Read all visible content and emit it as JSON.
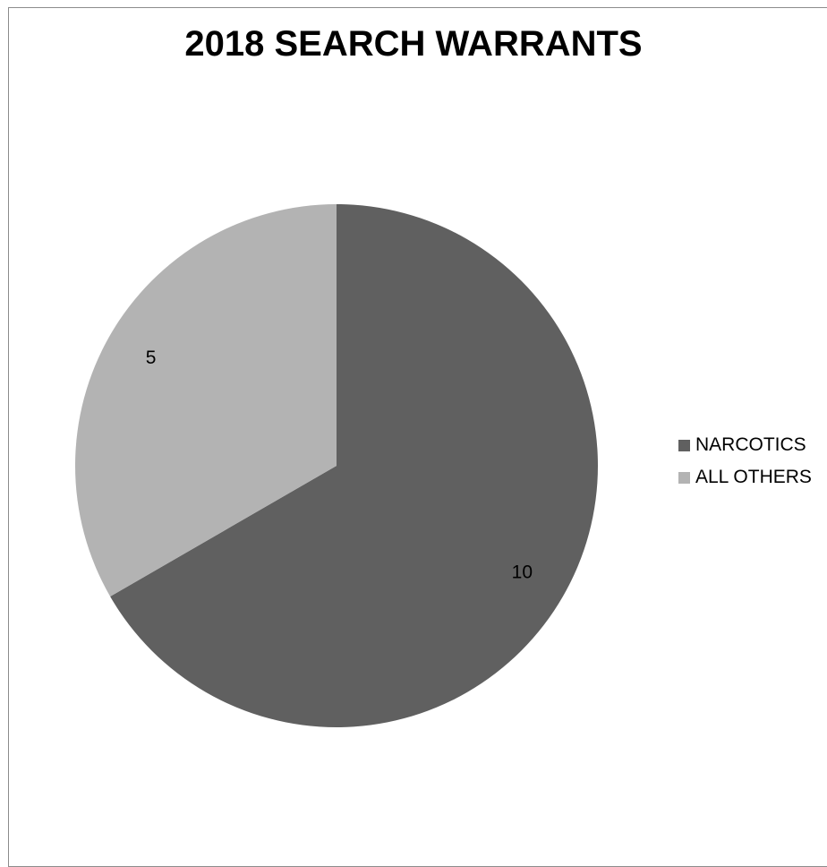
{
  "chart_data": {
    "type": "pie",
    "title": "2018 SEARCH WARRANTS",
    "categories": [
      "NARCOTICS",
      "ALL OTHERS"
    ],
    "values": [
      10,
      5
    ],
    "data_labels": [
      "10",
      "5"
    ],
    "colors": [
      "#606060",
      "#b3b3b3"
    ],
    "legend_position": "right",
    "start_angle": "12 o'clock, clockwise"
  }
}
